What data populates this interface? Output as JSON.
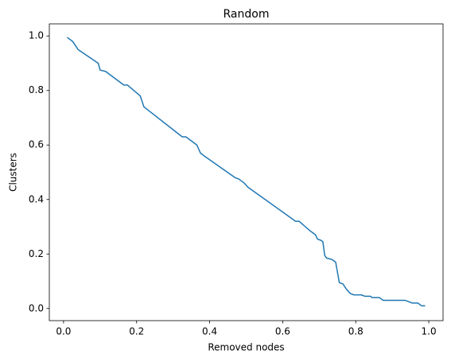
{
  "chart_data": {
    "type": "line",
    "title": "Random",
    "x_label": "Removed nodes",
    "y_label": "Clusters",
    "x": [
      0.01,
      0.025,
      0.035,
      0.04,
      0.095,
      0.1,
      0.115,
      0.165,
      0.175,
      0.21,
      0.22,
      0.325,
      0.335,
      0.365,
      0.375,
      0.385,
      0.47,
      0.48,
      0.495,
      0.505,
      0.625,
      0.635,
      0.645,
      0.675,
      0.69,
      0.695,
      0.705,
      0.71,
      0.715,
      0.72,
      0.735,
      0.745,
      0.755,
      0.765,
      0.775,
      0.785,
      0.795,
      0.815,
      0.825,
      0.84,
      0.845,
      0.865,
      0.875,
      0.935,
      0.945,
      0.955,
      0.97,
      0.98,
      0.99
    ],
    "series": [
      {
        "color": "#1f77b4",
        "values": [
          0.995,
          0.98,
          0.96,
          0.95,
          0.9,
          0.875,
          0.87,
          0.82,
          0.82,
          0.78,
          0.74,
          0.63,
          0.63,
          0.6,
          0.57,
          0.56,
          0.48,
          0.475,
          0.46,
          0.445,
          0.33,
          0.32,
          0.32,
          0.285,
          0.27,
          0.255,
          0.25,
          0.245,
          0.195,
          0.185,
          0.18,
          0.17,
          0.095,
          0.09,
          0.07,
          0.055,
          0.05,
          0.05,
          0.045,
          0.045,
          0.04,
          0.04,
          0.03,
          0.03,
          0.025,
          0.02,
          0.02,
          0.01,
          0.01
        ]
      }
    ],
    "xlim": [
      -0.039,
      1.039
    ],
    "ylim": [
      -0.0445,
      1.0445
    ],
    "xticks": [
      {
        "value": 0,
        "label": "0.0"
      },
      0.2,
      0.4,
      0.6,
      0.8,
      {
        "value": 1,
        "label": "1.0"
      }
    ],
    "yticks": [
      {
        "value": 0,
        "label": "0.0"
      },
      0.2,
      0.4,
      0.6,
      0.8,
      {
        "value": 1,
        "label": "1.0"
      }
    ],
    "grid": false
  }
}
